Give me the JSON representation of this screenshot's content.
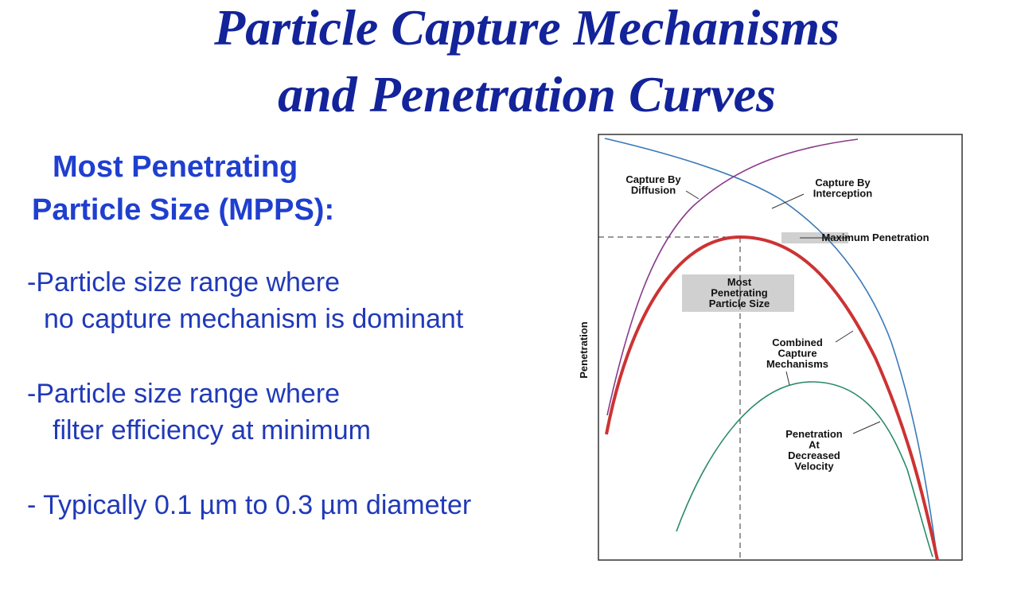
{
  "title": [
    "Particle Capture Mechanisms",
    "and Penetration Curves"
  ],
  "subtitle": [
    "Most Penetrating",
    "Particle Size (MPPS):"
  ],
  "bullets": [
    [
      "-Particle size range where",
      "no capture mechanism is dominant"
    ],
    [
      "-Particle size range where",
      "filter efficiency at minimum"
    ],
    [
      "- Typically 0.1 µm to 0.3 µm diameter"
    ]
  ],
  "diagram": {
    "y_axis_label": "Penetration",
    "labels": {
      "diffusion": [
        "Capture By",
        "Diffusion"
      ],
      "interception": [
        "Capture By",
        "Interception"
      ],
      "max_penetration": [
        "Maximum Penetration"
      ],
      "mpps": [
        "Most",
        "Penetrating",
        "Particle Size"
      ],
      "combined": [
        "Combined",
        "Capture",
        "Mechanisms"
      ],
      "decreased_velocity": [
        "Penetration",
        "At",
        "Decreased",
        "Velocity"
      ]
    }
  }
}
